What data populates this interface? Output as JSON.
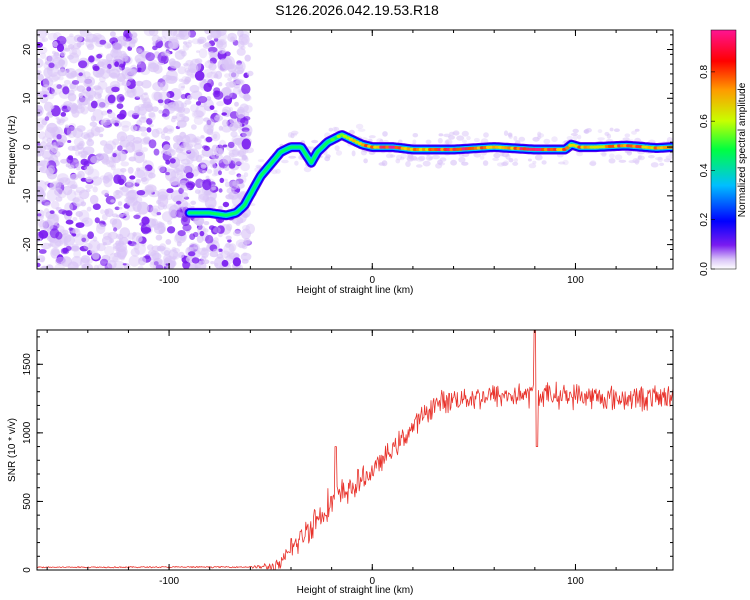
{
  "title": "S126.2026.042.19.53.R18",
  "colors": {
    "snr_line": "#e8322b",
    "spec_speckle": "#7a1cf0",
    "spec_speckle_light": "#d9c4f7",
    "cmap": [
      "#ffffff",
      "#d9c4f7",
      "#7a1cf0",
      "#0000ff",
      "#00bfff",
      "#00ff40",
      "#c8ff00",
      "#ff9a00",
      "#ff0000",
      "#ff1493"
    ]
  },
  "chart_data": [
    {
      "type": "heatmap",
      "name": "spectrogram",
      "xlabel": "Height of straight line (km)",
      "ylabel": "Frequency (Hz)",
      "xlim": [
        -165,
        148
      ],
      "ylim": [
        -25,
        24
      ],
      "xticks": [
        -100,
        0,
        100
      ],
      "xtick_labels": [
        "-100",
        "0",
        "100"
      ],
      "yticks": [
        -20,
        -10,
        0,
        10,
        20
      ],
      "ytick_labels": [
        "-20",
        "-10",
        "0",
        "10",
        "20"
      ],
      "noise_region_x": [
        -165,
        -60
      ],
      "ridge": {
        "x": [
          -90,
          -80,
          -72,
          -67,
          -63,
          -55,
          -45,
          -40,
          -35,
          -30,
          -27,
          -22,
          -15,
          -10,
          -5,
          0,
          10,
          20,
          40,
          60,
          80,
          95,
          98,
          102,
          110,
          125,
          140,
          148
        ],
        "freq": [
          -13.5,
          -13.5,
          -14,
          -13.5,
          -12,
          -6,
          -1,
          0,
          0,
          -3.2,
          -1,
          1,
          2.5,
          1.5,
          0.5,
          0,
          0,
          -0.5,
          -0.5,
          0,
          -0.5,
          -0.5,
          0.5,
          0,
          0,
          0.3,
          -0.2,
          0
        ],
        "amplitude": [
          0.3,
          0.3,
          0.35,
          0.4,
          0.45,
          0.45,
          0.45,
          0.5,
          0.5,
          0.5,
          0.45,
          0.5,
          0.6,
          0.7,
          0.75,
          0.85,
          0.95,
          0.75,
          0.95,
          0.75,
          0.95,
          0.8,
          0.7,
          0.8,
          0.75,
          0.85,
          0.8,
          0.75
        ]
      },
      "colorbar": {
        "label": "Normalized spectral amplitude",
        "range": [
          0,
          0.97
        ],
        "ticks": [
          0.0,
          0.2,
          0.4,
          0.6,
          0.8
        ],
        "tick_labels": [
          "0.0",
          "0.2",
          "0.4",
          "0.6",
          "0.8"
        ]
      }
    },
    {
      "type": "line",
      "name": "snr",
      "xlabel": "Height of straight line (km)",
      "ylabel": "SNR (10 * v/v)",
      "xlim": [
        -165,
        148
      ],
      "ylim": [
        0,
        1750
      ],
      "xticks": [
        -100,
        0,
        100
      ],
      "xtick_labels": [
        "-100",
        "0",
        "100"
      ],
      "yticks": [
        0,
        500,
        1000,
        1500
      ],
      "ytick_labels": [
        "0",
        "500",
        "1000",
        "1500"
      ],
      "series": [
        {
          "name": "SNR",
          "trend": {
            "x": [
              -165,
              -60,
              -48,
              -45,
              -40,
              -30,
              -20,
              -10,
              0,
              10,
              20,
              25,
              30,
              40,
              60,
              80,
              100,
              120,
              148
            ],
            "y": [
              20,
              22,
              25,
              40,
              140,
              330,
              500,
              600,
              720,
              880,
              1040,
              1120,
              1200,
              1250,
              1270,
              1280,
              1270,
              1250,
              1260
            ]
          },
          "noise_amplitude": {
            "x": [
              -165,
              -60,
              -45,
              -30,
              -15,
              0,
              25,
              60,
              148
            ],
            "y": [
              6,
              6,
              60,
              150,
              140,
              90,
              100,
              110,
              110
            ]
          },
          "spikes": [
            {
              "x": -40,
              "y": 230
            },
            {
              "x": -18,
              "y": 900
            },
            {
              "x": 80,
              "y": 1750
            },
            {
              "x": 81,
              "y": 900
            }
          ]
        }
      ]
    }
  ]
}
